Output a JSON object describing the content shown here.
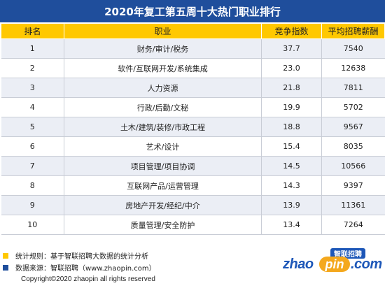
{
  "title": "2020年复工第五周十大热门职业排行",
  "colors": {
    "header_bg": "#1f4e9c",
    "column_header_bg": "#ffc800",
    "stripe": "#ebeef5",
    "square_yellow": "#ffc800",
    "square_blue": "#1f4e9c",
    "logo_blue": "#1d57b8",
    "logo_orange": "#f4a81d"
  },
  "table": {
    "headers": {
      "rank": "排名",
      "job": "职业",
      "competition": "竞争指数",
      "salary": "平均招聘薪酬"
    },
    "rows": [
      {
        "rank": "1",
        "job": "财务/审计/税务",
        "competition": "37.7",
        "salary": "7540"
      },
      {
        "rank": "2",
        "job": "软件/互联网开发/系统集成",
        "competition": "23.0",
        "salary": "12638"
      },
      {
        "rank": "3",
        "job": "人力资源",
        "competition": "21.8",
        "salary": "7811"
      },
      {
        "rank": "4",
        "job": "行政/后勤/文秘",
        "competition": "19.9",
        "salary": "5702"
      },
      {
        "rank": "5",
        "job": "土木/建筑/装修/市政工程",
        "competition": "18.8",
        "salary": "9567"
      },
      {
        "rank": "6",
        "job": "艺术/设计",
        "competition": "15.4",
        "salary": "8035"
      },
      {
        "rank": "7",
        "job": "项目管理/项目协调",
        "competition": "14.5",
        "salary": "10566"
      },
      {
        "rank": "8",
        "job": "互联网产品/运营管理",
        "competition": "14.3",
        "salary": "9397"
      },
      {
        "rank": "9",
        "job": "房地产开发/经纪/中介",
        "competition": "13.9",
        "salary": "11361"
      },
      {
        "rank": "10",
        "job": "质量管理/安全防护",
        "competition": "13.4",
        "salary": "7264"
      }
    ]
  },
  "notes": {
    "rule": "统计规则：基于智联招聘大数据的统计分析",
    "source": "数据来源：智联招聘（www.zhaopin.com）"
  },
  "copyright": "Copyright©2020 zhaopin all rights reserved",
  "logo": {
    "badge": "智联招聘",
    "word_left": "zhao",
    "word_mid": "pin",
    "word_right": ".com"
  }
}
